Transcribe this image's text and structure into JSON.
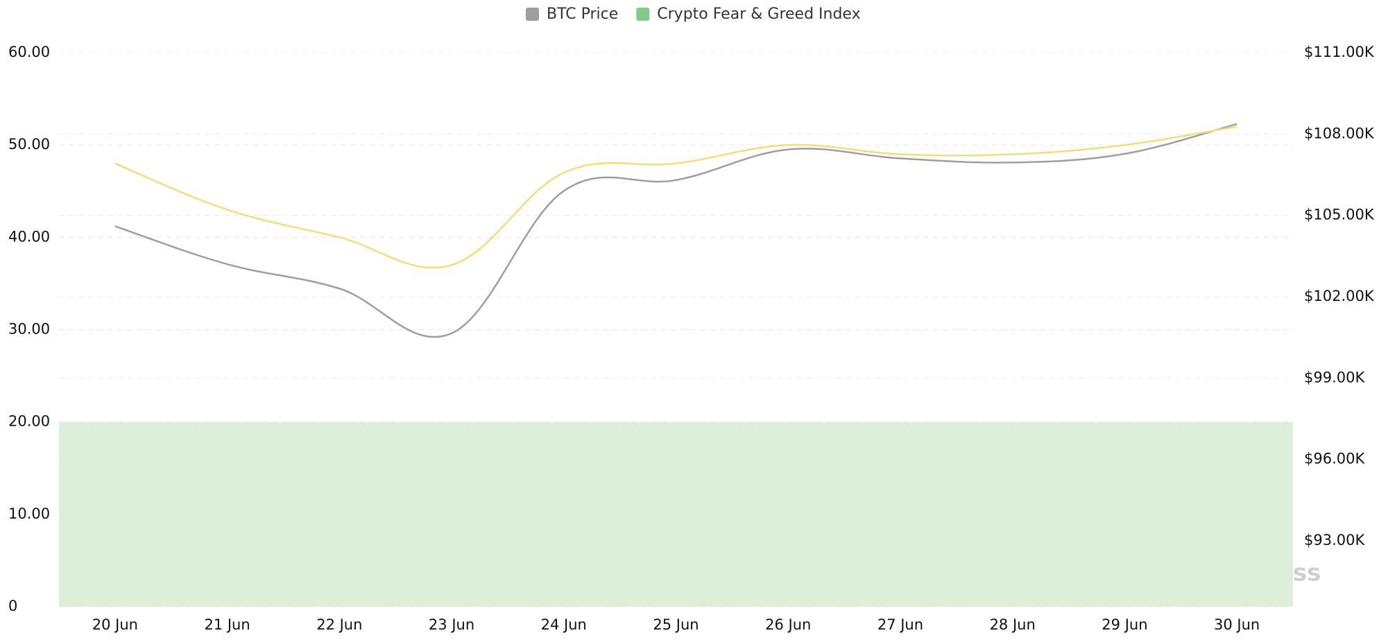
{
  "chart_data": {
    "type": "line",
    "categories": [
      "20 Jun",
      "21 Jun",
      "22 Jun",
      "23 Jun",
      "24 Jun",
      "25 Jun",
      "26 Jun",
      "27 Jun",
      "28 Jun",
      "29 Jun",
      "30 Jun"
    ],
    "series": [
      {
        "name": "BTC Price",
        "color": "#9e9e9e",
        "axis": "y2",
        "values": [
          104600,
          103200,
          102300,
          100650,
          105900,
          106300,
          107430,
          107100,
          106950,
          107270,
          108370
        ]
      },
      {
        "name": "Crypto Fear & Greed Index",
        "color": "#7fcc8a",
        "line_color": "#f5dc7a",
        "values": [
          48,
          43,
          40,
          37,
          47,
          48,
          50,
          49,
          49,
          50,
          52
        ]
      }
    ],
    "ylim": [
      0,
      60
    ],
    "yticks": [
      0,
      {
        "value": 10,
        "label": "10.00"
      },
      {
        "value": 20,
        "label": "20.00"
      },
      {
        "value": 30,
        "label": "30.00"
      },
      {
        "value": 40,
        "label": "40.00"
      },
      {
        "value": 50,
        "label": "50.00"
      },
      {
        "value": 60,
        "label": "60.00"
      }
    ],
    "y2lim": [
      90570,
      111000
    ],
    "y2ticks": [
      {
        "value": 93000,
        "label": "$93.00K"
      },
      {
        "value": 96000,
        "label": "$96.00K"
      },
      {
        "value": 99000,
        "label": "$99.00K"
      },
      {
        "value": 102000,
        "label": "$102.00K"
      },
      {
        "value": 105000,
        "label": "$105.00K"
      },
      {
        "value": 108000,
        "label": "$108.00K"
      },
      {
        "value": 111000,
        "label": "$111.00K"
      }
    ],
    "shaded_band": {
      "range": [
        0,
        20
      ],
      "color": "#ddeed9"
    },
    "grid": true,
    "legend": "top",
    "watermark": "coinglass"
  }
}
